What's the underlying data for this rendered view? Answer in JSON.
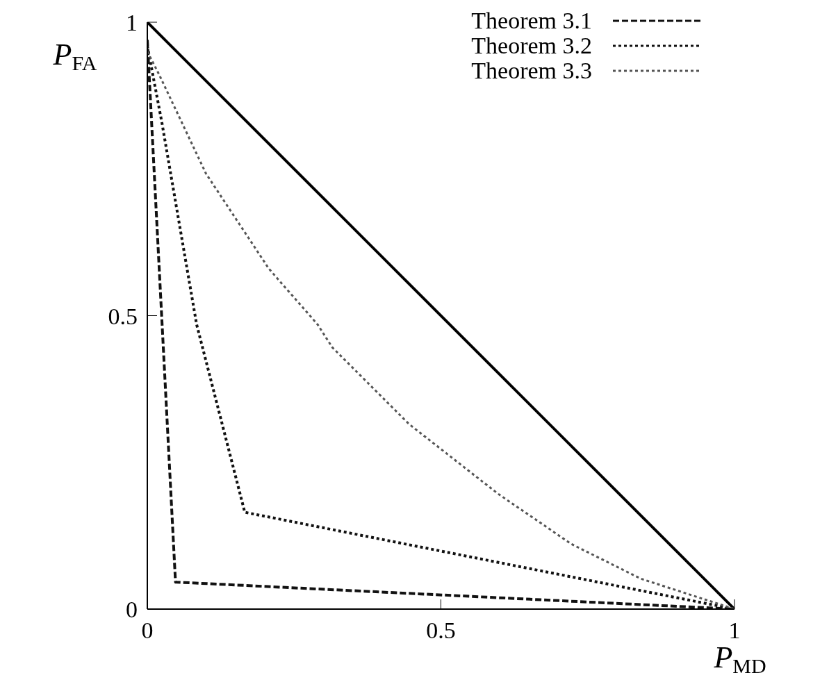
{
  "chart_data": {
    "type": "line",
    "xlabel": "P$_{MD}$",
    "ylabel": "P$_{FA}$",
    "xlim": [
      0,
      1
    ],
    "ylim": [
      0,
      1
    ],
    "xticks": [
      0,
      0.5,
      1
    ],
    "yticks": [
      0,
      0.5,
      1
    ],
    "grid": false,
    "legend": "top right",
    "marker": "none",
    "series": [
      {
        "color": "#000000",
        "line_style": "solid",
        "x": [
          0,
          1
        ],
        "values": [
          1,
          0
        ]
      },
      {
        "name": "Theorem 3.1",
        "color": "#111111",
        "line_style": "dashed",
        "x": [
          0,
          0.048,
          1
        ],
        "values": [
          0.97,
          0.046,
          0
        ]
      },
      {
        "name": "Theorem 3.2",
        "color": "#111111",
        "line_style": "dotted",
        "x": [
          0,
          0.025,
          0.084,
          0.166,
          1
        ],
        "values": [
          0.96,
          0.828,
          0.485,
          0.165,
          0
        ]
      },
      {
        "name": "Theorem 3.3",
        "color": "#555555",
        "line_style": "dotted",
        "x": [
          0,
          0.02,
          0.1,
          0.207,
          0.29,
          0.315,
          0.446,
          0.598,
          0.722,
          0.84,
          1
        ],
        "values": [
          0.95,
          0.911,
          0.742,
          0.58,
          0.485,
          0.446,
          0.315,
          0.196,
          0.111,
          0.052,
          0
        ]
      }
    ]
  }
}
